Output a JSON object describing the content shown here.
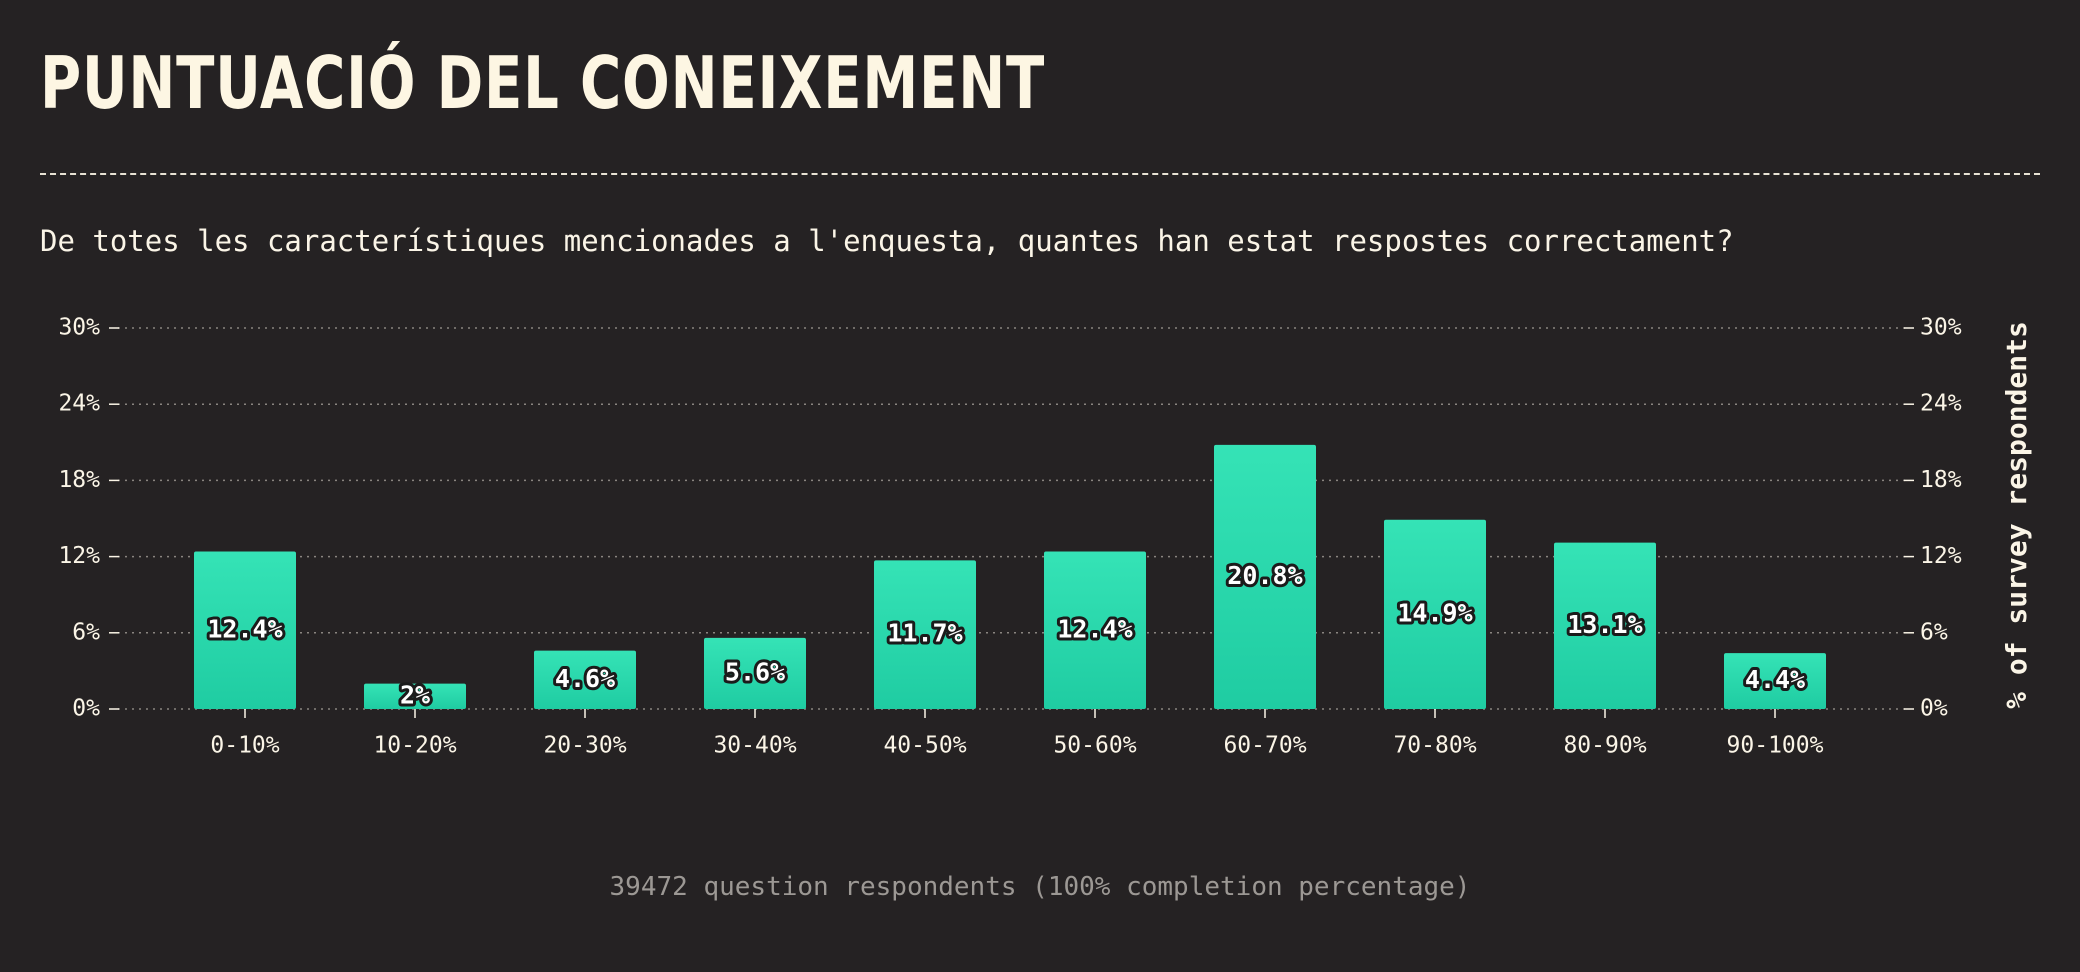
{
  "header": {
    "title": "PUNTUACIÓ DEL CONEIXEMENT",
    "question": "De totes les característiques mencionades a l'enquesta, quantes han estat respostes correctament?"
  },
  "footer": {
    "note": "39472 question respondents (100% completion percentage)"
  },
  "colors": {
    "background": "#252223",
    "bar_top": "#35e3b6",
    "bar_bottom": "#1fcca2",
    "text": "#fbf5e7",
    "grid": "#8a8580",
    "muted": "#9c9894"
  },
  "chart_data": {
    "type": "bar",
    "categories": [
      "0-10%",
      "10-20%",
      "20-30%",
      "30-40%",
      "40-50%",
      "50-60%",
      "60-70%",
      "70-80%",
      "80-90%",
      "90-100%"
    ],
    "values": [
      12.4,
      2,
      4.6,
      5.6,
      11.7,
      12.4,
      20.8,
      14.9,
      13.1,
      4.4
    ],
    "value_labels": [
      "12.4%",
      "2%",
      "4.6%",
      "5.6%",
      "11.7%",
      "12.4%",
      "20.8%",
      "14.9%",
      "13.1%",
      "4.4%"
    ],
    "ylim": [
      0,
      30
    ],
    "yticks": [
      0,
      6,
      12,
      18,
      24,
      30
    ],
    "ytick_labels": [
      "0%",
      "6%",
      "12%",
      "18%",
      "24%",
      "30%"
    ],
    "ylabel": "% of survey respondents",
    "grid": true,
    "dual_y_axis": true
  }
}
